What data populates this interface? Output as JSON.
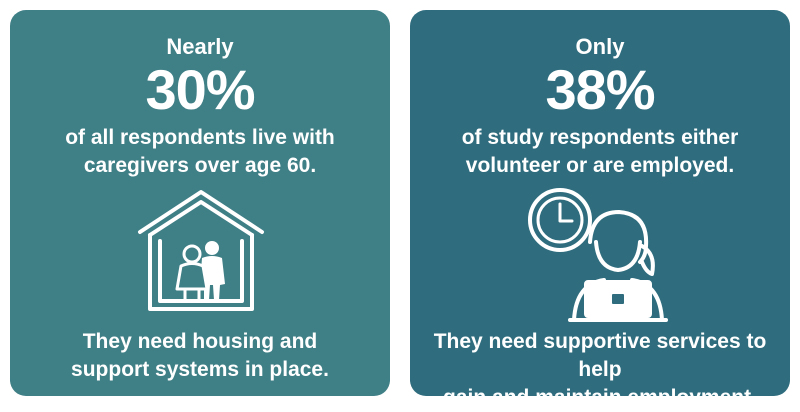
{
  "cards": [
    {
      "lead": "Nearly",
      "stat": "30%",
      "desc_lines": [
        "of all respondents live with",
        "caregivers over age 60."
      ],
      "icon": "house-with-elderly-couple-icon",
      "foot_lines": [
        "They need housing and",
        "support systems in place."
      ]
    },
    {
      "lead": "Only",
      "stat": "38%",
      "desc_lines": [
        "of study respondents either",
        "volunteer or are employed."
      ],
      "icon": "clock-and-worker-at-laptop-icon",
      "foot_lines": [
        "They need supportive services to help",
        "gain and maintain employment."
      ]
    }
  ],
  "colors": {
    "left_card": "#3f7f86",
    "right_card": "#2f6d7e",
    "text": "#ffffff"
  }
}
